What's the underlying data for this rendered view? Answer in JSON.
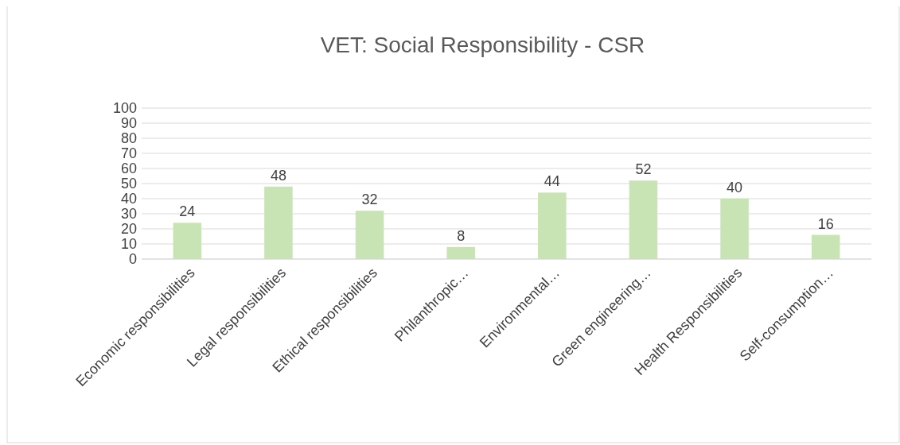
{
  "chart_data": {
    "type": "bar",
    "title": "VET: Social Responsibility - CSR",
    "categories": [
      "Economic responsibilities",
      "Legal responsibilities",
      "Ethical responsibilities",
      "Philanthropic…",
      "Environmental…",
      "Green engineering…",
      "Health Responsibilities",
      "Self-consumption…"
    ],
    "values": [
      24,
      48,
      32,
      8,
      44,
      52,
      40,
      16
    ],
    "color": "#c9e4b4",
    "ylim": [
      0,
      100
    ],
    "yticks": [
      0,
      10,
      20,
      30,
      40,
      50,
      60,
      70,
      80,
      90,
      100
    ],
    "grid": "y",
    "data_labels": true
  }
}
